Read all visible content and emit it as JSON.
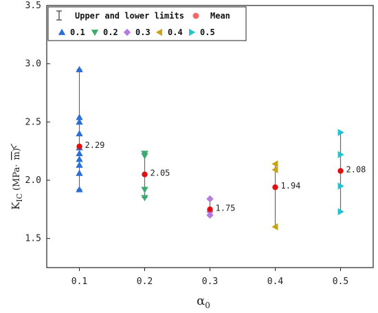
{
  "chart_data": {
    "type": "scatter",
    "xlabel": "α",
    "xlabel_sub": "0",
    "ylabel_main": "K",
    "ylabel_sub": "IC",
    "ylabel_unit_left": "(MPa·",
    "ylabel_unit_sqrt": "m",
    "ylabel_unit_right": ")",
    "xlim": [
      0.05,
      0.55
    ],
    "ylim": [
      1.25,
      3.5
    ],
    "x_ticks": [
      0.1,
      0.2,
      0.3,
      0.4,
      0.5
    ],
    "x_tick_labels": [
      "0.1",
      "0.2",
      "0.3",
      "0.4",
      "0.5"
    ],
    "y_ticks": [
      1.5,
      2.0,
      2.5,
      3.0,
      3.5
    ],
    "y_tick_labels": [
      "1.5",
      "2.0",
      "2.5",
      "3.0",
      "3.5"
    ],
    "legend": {
      "position": "top-left",
      "range_label": "Upper and lower limits",
      "mean_label": "Mean"
    },
    "series": [
      {
        "name": "0.1",
        "x": 0.1,
        "marker": "triangle-up",
        "color": "#2a6fd6",
        "values": [
          2.95,
          2.54,
          2.5,
          2.4,
          2.28,
          2.23,
          2.18,
          2.13,
          2.06,
          1.92
        ],
        "mean": 2.29,
        "mean_label": "2.29",
        "min": 1.92,
        "max": 2.95
      },
      {
        "name": "0.2",
        "x": 0.2,
        "marker": "triangle-down",
        "color": "#3daa70",
        "values": [
          2.23,
          2.21,
          1.92,
          1.85
        ],
        "mean": 2.05,
        "mean_label": "2.05",
        "min": 1.85,
        "max": 2.23
      },
      {
        "name": "0.3",
        "x": 0.3,
        "marker": "diamond",
        "color": "#b57be0",
        "values": [
          1.84,
          1.73,
          1.7
        ],
        "mean": 1.75,
        "mean_label": "1.75",
        "min": 1.7,
        "max": 1.84
      },
      {
        "name": "0.4",
        "x": 0.4,
        "marker": "triangle-left",
        "color": "#c9a312",
        "values": [
          2.14,
          2.09,
          1.6
        ],
        "mean": 1.94,
        "mean_label": "1.94",
        "min": 1.6,
        "max": 2.14
      },
      {
        "name": "0.5",
        "x": 0.5,
        "marker": "triangle-right",
        "color": "#22c3cf",
        "values": [
          2.41,
          2.22,
          1.95,
          1.73
        ],
        "mean": 2.08,
        "mean_label": "2.08",
        "min": 1.73,
        "max": 2.41
      }
    ],
    "mean_color": "#e01010",
    "range_line_color": "#666666",
    "grid": false
  }
}
